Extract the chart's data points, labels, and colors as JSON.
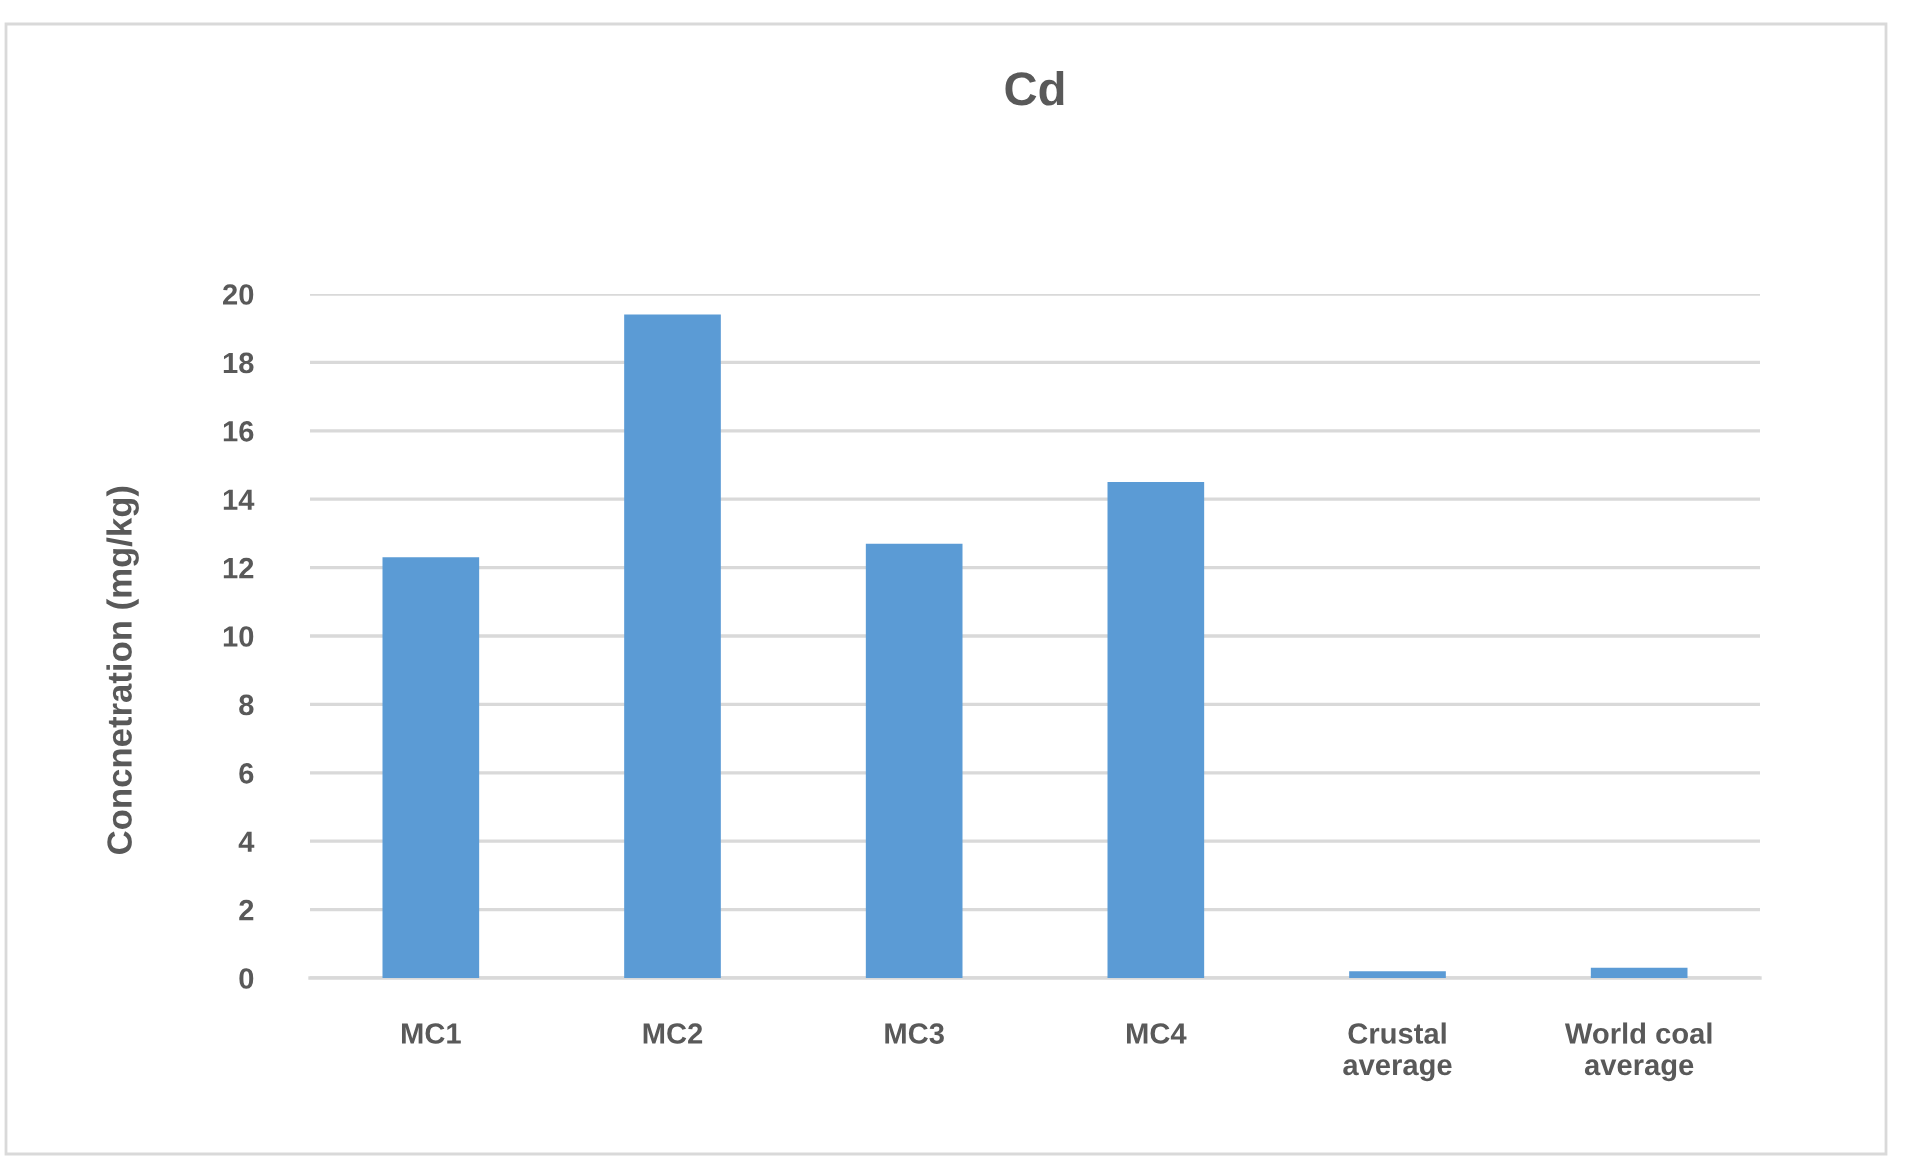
{
  "chart_data": {
    "type": "bar",
    "title": "Cd",
    "ylabel": "Concnetration (mg/kg)",
    "categories": [
      "MC1",
      "MC2",
      "MC3",
      "MC4",
      "Crustal\naverage",
      "World coal\naverage"
    ],
    "values": [
      12.3,
      19.4,
      12.7,
      14.5,
      0.2,
      0.3
    ],
    "color": "#5b9bd5",
    "ylim": [
      0,
      20
    ],
    "yticks": [
      0,
      2,
      4,
      6,
      8,
      10,
      12,
      14,
      16,
      18,
      20
    ],
    "grid": "y"
  }
}
